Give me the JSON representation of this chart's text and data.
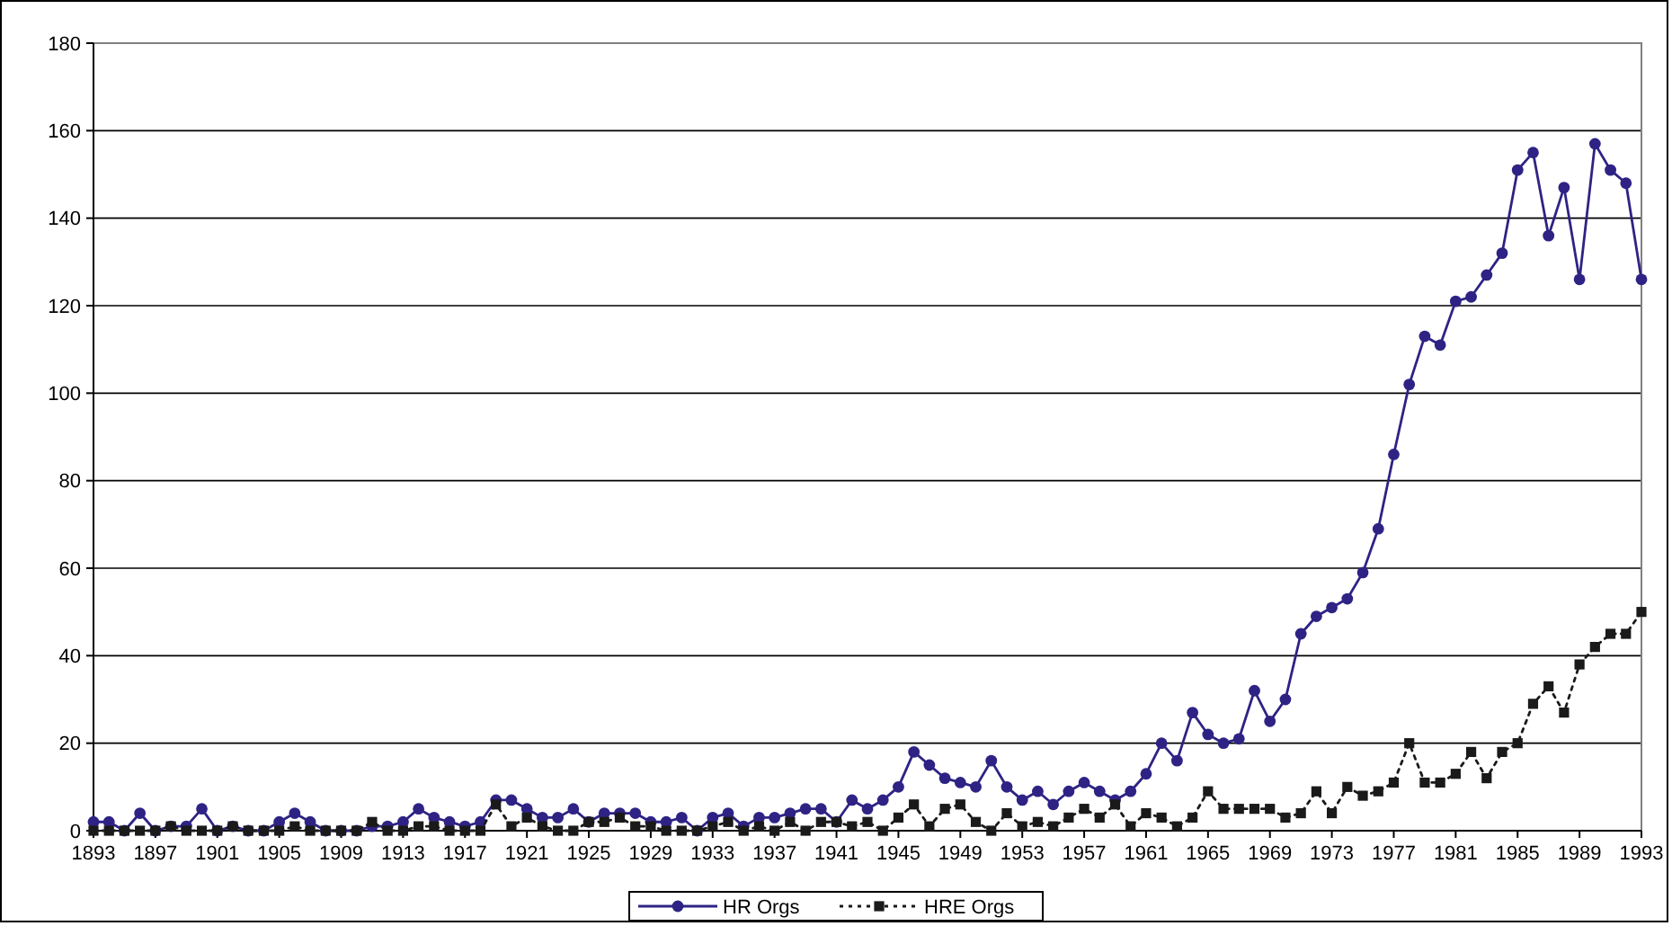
{
  "chart_data": {
    "type": "line",
    "x": [
      1893,
      1894,
      1895,
      1896,
      1897,
      1898,
      1899,
      1900,
      1901,
      1902,
      1903,
      1904,
      1905,
      1906,
      1907,
      1908,
      1909,
      1910,
      1911,
      1912,
      1913,
      1914,
      1915,
      1916,
      1917,
      1918,
      1919,
      1920,
      1921,
      1922,
      1923,
      1924,
      1925,
      1926,
      1927,
      1928,
      1929,
      1930,
      1931,
      1932,
      1933,
      1934,
      1935,
      1936,
      1937,
      1938,
      1939,
      1940,
      1941,
      1942,
      1943,
      1944,
      1945,
      1946,
      1947,
      1948,
      1949,
      1950,
      1951,
      1952,
      1953,
      1954,
      1955,
      1956,
      1957,
      1958,
      1959,
      1960,
      1961,
      1962,
      1963,
      1964,
      1965,
      1966,
      1967,
      1968,
      1969,
      1970,
      1971,
      1972,
      1973,
      1974,
      1975,
      1976,
      1977,
      1978,
      1979,
      1980,
      1981,
      1982,
      1983,
      1984,
      1985,
      1986,
      1987,
      1988,
      1989,
      1990,
      1991,
      1992,
      1993
    ],
    "series": [
      {
        "name": "HR Orgs",
        "color": "#2e2384",
        "marker": "circle",
        "line_style": "solid",
        "values": [
          2,
          2,
          0,
          4,
          0,
          1,
          1,
          5,
          0,
          1,
          0,
          0,
          2,
          4,
          2,
          0,
          0,
          0,
          1,
          1,
          2,
          5,
          3,
          2,
          1,
          2,
          7,
          7,
          5,
          3,
          3,
          5,
          2,
          4,
          4,
          4,
          2,
          2,
          3,
          0,
          3,
          4,
          1,
          3,
          3,
          4,
          5,
          5,
          2,
          7,
          5,
          7,
          10,
          18,
          15,
          12,
          11,
          10,
          16,
          10,
          7,
          9,
          6,
          9,
          11,
          9,
          7,
          9,
          13,
          20,
          16,
          27,
          22,
          20,
          21,
          32,
          25,
          30,
          45,
          49,
          51,
          53,
          59,
          69,
          86,
          102,
          113,
          111,
          121,
          122,
          127,
          132,
          151,
          155,
          136,
          147,
          126,
          157,
          151,
          148,
          126
        ]
      },
      {
        "name": "HRE Orgs",
        "color": "#1a1a1a",
        "marker": "square",
        "line_style": "dotted",
        "values": [
          0,
          0,
          0,
          0,
          0,
          1,
          0,
          0,
          0,
          1,
          0,
          0,
          0,
          1,
          0,
          0,
          0,
          0,
          2,
          0,
          0,
          1,
          1,
          0,
          0,
          0,
          6,
          1,
          3,
          1,
          0,
          0,
          2,
          2,
          3,
          1,
          1,
          0,
          0,
          0,
          1,
          2,
          0,
          1,
          0,
          2,
          0,
          2,
          2,
          1,
          2,
          0,
          3,
          6,
          1,
          5,
          6,
          2,
          0,
          4,
          1,
          2,
          1,
          3,
          5,
          3,
          6,
          1,
          4,
          3,
          1,
          3,
          9,
          5,
          5,
          5,
          5,
          3,
          4,
          9,
          4,
          10,
          8,
          9,
          11,
          20,
          11,
          11,
          13,
          18,
          12,
          18,
          20,
          29,
          33,
          27,
          38,
          42,
          45,
          45,
          50
        ]
      }
    ],
    "xlim": [
      1893,
      1993
    ],
    "xticks": [
      1893,
      1897,
      1901,
      1905,
      1909,
      1913,
      1917,
      1921,
      1925,
      1929,
      1933,
      1937,
      1941,
      1945,
      1949,
      1953,
      1957,
      1961,
      1965,
      1969,
      1973,
      1977,
      1981,
      1985,
      1989,
      1993
    ],
    "ylim": [
      0,
      180
    ],
    "yticks": [
      0,
      20,
      40,
      60,
      80,
      100,
      120,
      140,
      160,
      180
    ],
    "grid": "y",
    "legend": "bottom"
  }
}
